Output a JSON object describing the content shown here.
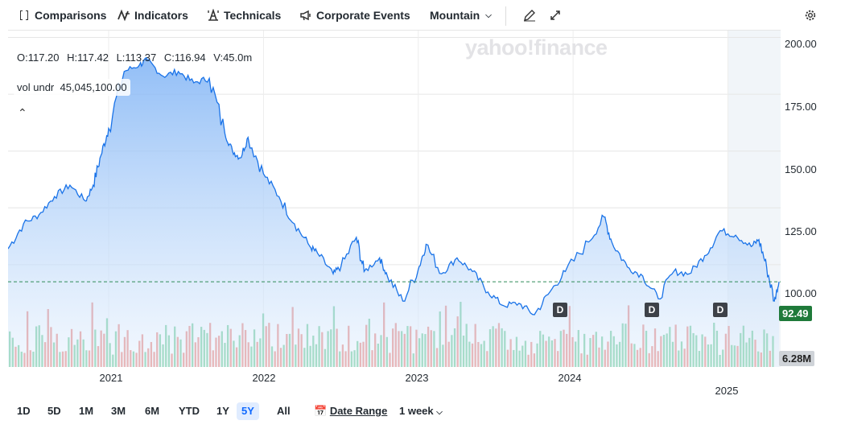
{
  "toolbar": {
    "comparisons": "Comparisons",
    "indicators": "Indicators",
    "technicals": "Technicals",
    "corporate_events": "Corporate Events",
    "chart_type": "Mountain"
  },
  "ohlc": {
    "open": "O:117.20",
    "high": "H:117.42",
    "low": "L:113.37",
    "close": "C:116.94",
    "volume": "V:45.0m"
  },
  "vol_undr": {
    "label": "vol undr",
    "value": "45,045,100.00"
  },
  "watermark": "yahoo!finance",
  "price_tag": "92.49",
  "volume_tag": "6.28M",
  "event_markers": [
    "D",
    "D",
    "D"
  ],
  "range_buttons": [
    "1D",
    "5D",
    "1M",
    "3M",
    "6M",
    "YTD",
    "1Y",
    "5Y",
    "All"
  ],
  "active_range": "5Y",
  "date_range_label": "Date Range",
  "interval": "1 week",
  "colors": {
    "line": "#1a73e8",
    "up_volume": "#5cc48a",
    "down_volume": "#e8746b",
    "price_tag": "#1f7a3a"
  },
  "chart_data": {
    "type": "area",
    "y_ticks": [
      "200.00",
      "175.00",
      "150.00",
      "125.00",
      "100.00"
    ],
    "x_ticks": [
      "2021",
      "2022",
      "2023",
      "2024",
      "2025"
    ],
    "ylim": [
      55,
      203
    ],
    "series": [
      {
        "x": [
          2020.35,
          2020.45,
          2020.55,
          2020.65,
          2020.75,
          2020.85,
          2020.9,
          2020.95,
          2021.0,
          2021.1,
          2021.2,
          2021.25,
          2021.35,
          2021.45,
          2021.55,
          2021.65,
          2021.75,
          2021.8,
          2021.85,
          2021.9,
          2022.0,
          2022.1,
          2022.2,
          2022.3,
          2022.35,
          2022.45,
          2022.5,
          2022.6,
          2022.65,
          2022.75,
          2022.8,
          2022.9,
          2023.0,
          2023.05,
          2023.15,
          2023.25,
          2023.35,
          2023.45,
          2023.55,
          2023.65,
          2023.75,
          2023.85,
          2023.95,
          2024.1,
          2024.2,
          2024.25,
          2024.35,
          2024.45,
          2024.55,
          2024.65,
          2024.75,
          2024.85,
          2024.95,
          2025.05,
          2025.15,
          2025.2,
          2025.25,
          2025.3,
          2025.33
        ],
        "y": [
          107,
          118,
          122,
          130,
          135,
          128,
          135,
          148,
          160,
          185,
          188,
          190,
          183,
          185,
          180,
          182,
          158,
          150,
          147,
          156,
          140,
          130,
          118,
          108,
          105,
          96,
          99,
          112,
          97,
          103,
          95,
          84,
          98,
          109,
          96,
          103,
          97,
          88,
          82,
          83,
          78,
          88,
          97,
          110,
          121,
          110,
          99,
          95,
          85,
          97,
          96,
          104,
          115,
          113,
          108,
          111,
          99,
          84,
          92.49
        ]
      }
    ],
    "volume": {
      "unit": "M",
      "last": 6.28
    }
  }
}
